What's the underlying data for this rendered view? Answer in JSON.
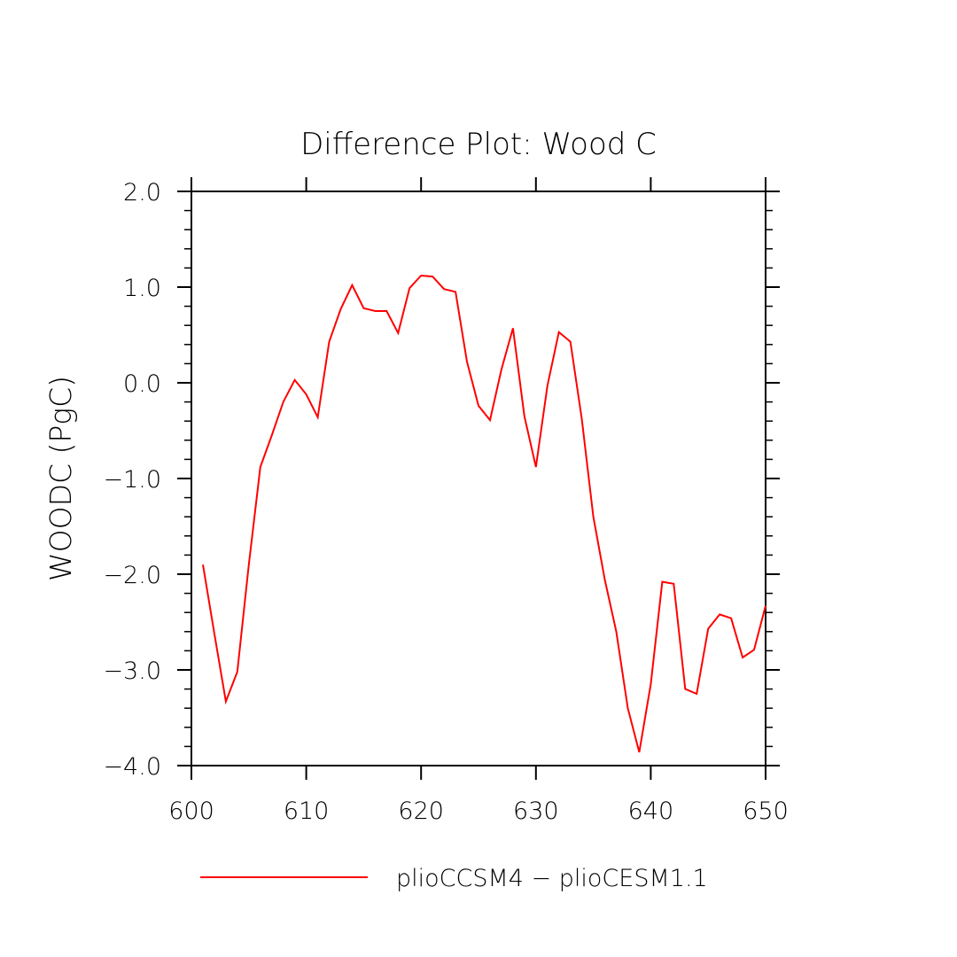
{
  "chart_data": {
    "type": "line",
    "title": "Difference Plot: Wood C",
    "xlabel": "",
    "ylabel": "WOODC   (PgC)",
    "xlim": [
      600,
      650
    ],
    "ylim": [
      -4.0,
      2.0
    ],
    "x_ticks": [
      600,
      610,
      620,
      630,
      640,
      650
    ],
    "x_tick_labels": [
      "600",
      "610",
      "620",
      "630",
      "640",
      "650"
    ],
    "y_ticks": [
      2.0,
      1.0,
      0.0,
      -1.0,
      -2.0,
      -3.0,
      -4.0
    ],
    "y_tick_labels": [
      "2.0",
      "1.0",
      "0.0",
      "−1.0",
      "−2.0",
      "−3.0",
      "−4.0"
    ],
    "grid": false,
    "legend_position": "bottom",
    "series": [
      {
        "name": "plioCCSM4 − plioCESM1.1",
        "color": "#ff0000",
        "x": [
          601,
          602,
          603,
          604,
          605,
          606,
          607,
          608,
          609,
          610,
          611,
          612,
          613,
          614,
          615,
          616,
          617,
          618,
          619,
          620,
          621,
          622,
          623,
          624,
          625,
          626,
          627,
          628,
          629,
          630,
          631,
          632,
          633,
          634,
          635,
          636,
          637,
          638,
          639,
          640,
          641,
          642,
          643,
          644,
          645,
          646,
          647,
          648,
          649,
          650
        ],
        "values": [
          -1.9,
          -2.62,
          -3.33,
          -3.02,
          -1.9,
          -0.88,
          -0.55,
          -0.2,
          0.03,
          -0.12,
          -0.36,
          0.43,
          0.77,
          1.02,
          0.78,
          0.75,
          0.75,
          0.52,
          0.99,
          1.12,
          1.11,
          0.98,
          0.95,
          0.22,
          -0.24,
          -0.39,
          0.14,
          0.57,
          -0.35,
          -0.88,
          -0.03,
          0.53,
          0.43,
          -0.38,
          -1.4,
          -2.06,
          -2.6,
          -3.4,
          -3.86,
          -3.15,
          -2.08,
          -2.1,
          -3.2,
          -3.25,
          -2.57,
          -2.42,
          -2.46,
          -2.87,
          -2.79,
          -2.33
        ]
      }
    ]
  }
}
